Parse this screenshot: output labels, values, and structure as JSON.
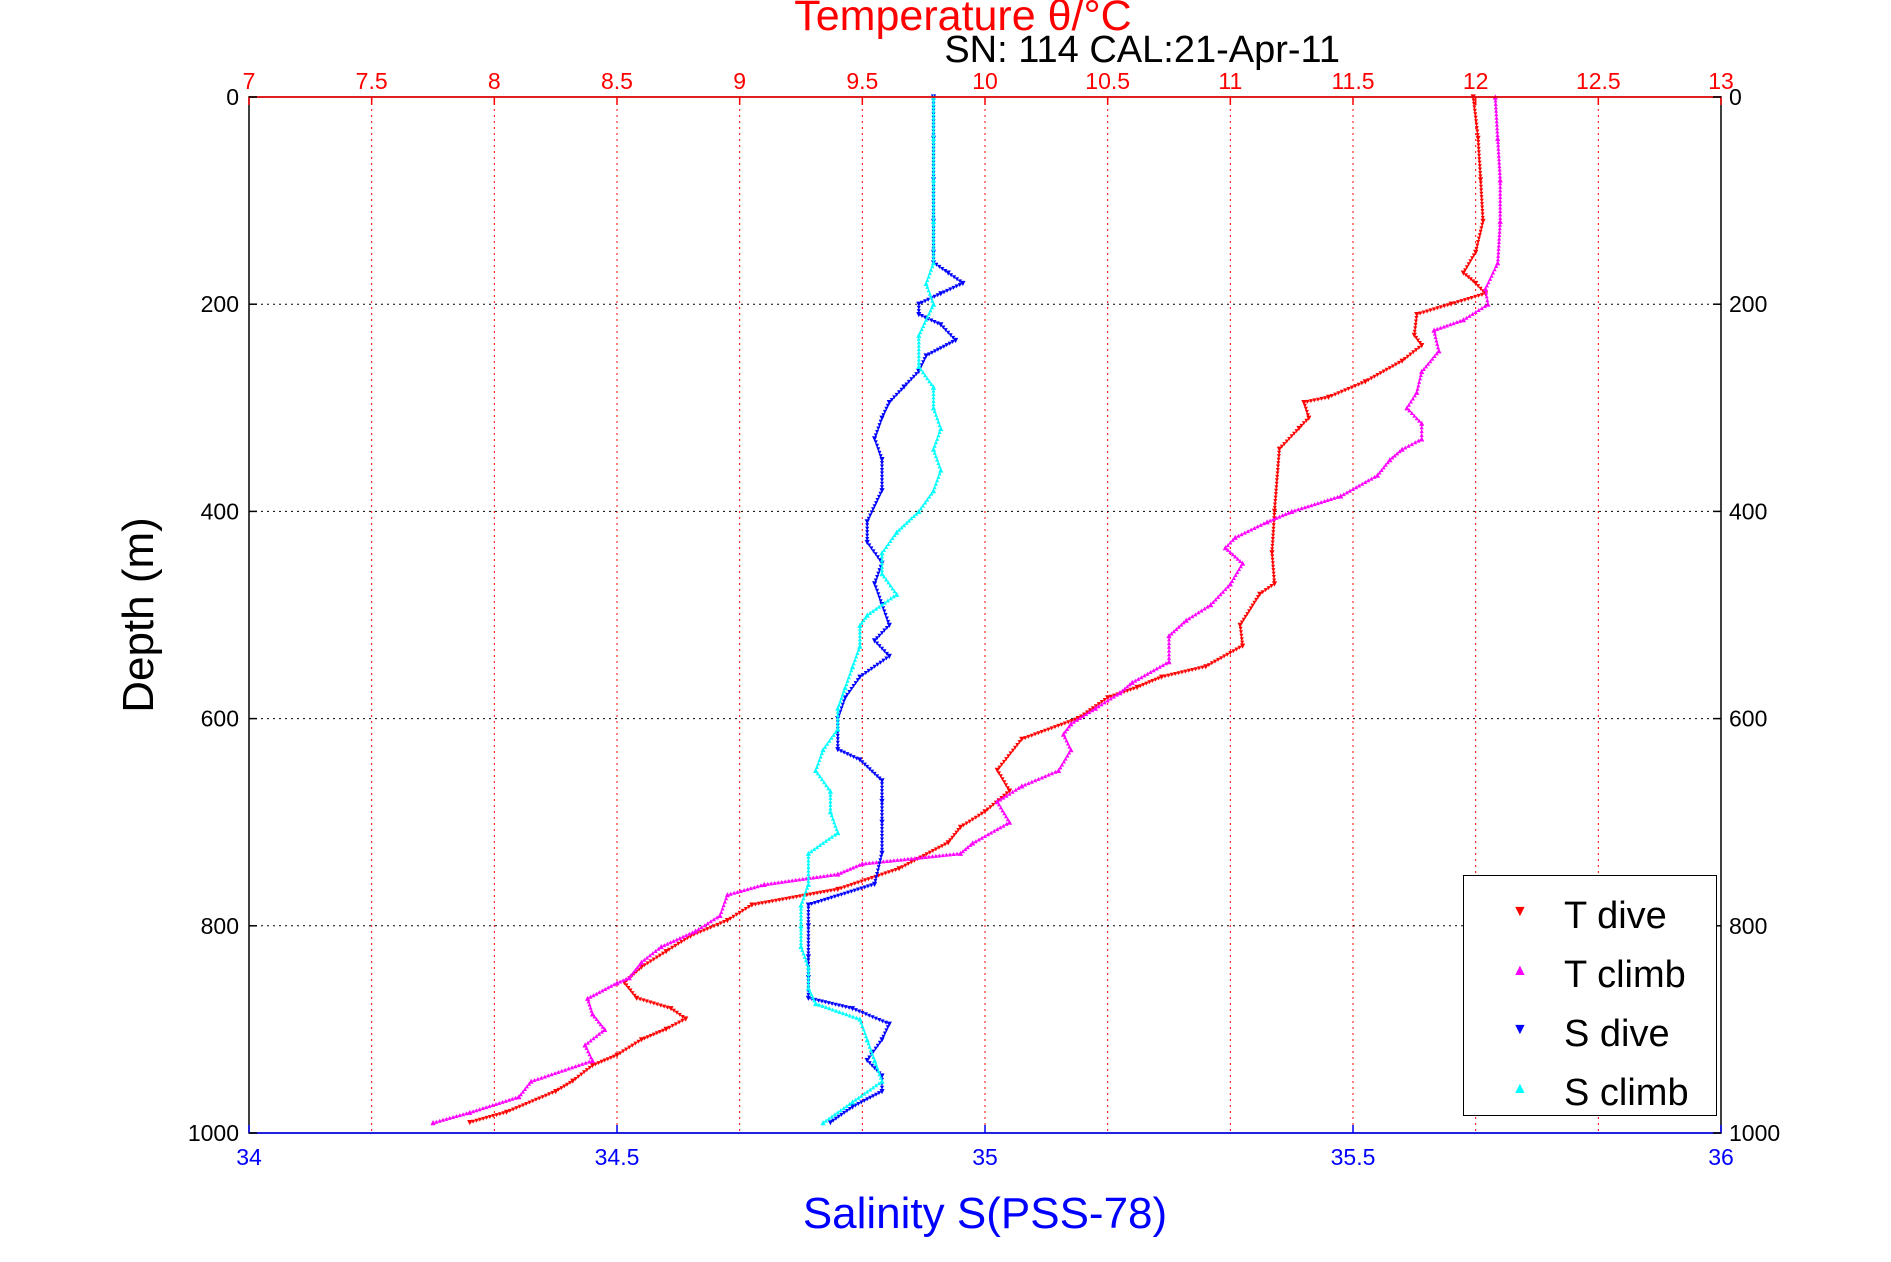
{
  "chart_data": {
    "type": "scatter",
    "title": "Temperature θ/°C",
    "subtitle": "SN: 114  CAL:21-Apr-11",
    "top_axis_label": "Temperature θ/°C",
    "xlabel": "Salinity S(PSS-78)",
    "ylabel": "Depth (m)",
    "temperature_axis": {
      "range": [
        7,
        13
      ],
      "ticks": [
        "7",
        "7.5",
        "8",
        "8.5",
        "9",
        "9.5",
        "10",
        "10.5",
        "11",
        "11.5",
        "12",
        "12.5",
        "13"
      ],
      "color": "#ff0000"
    },
    "salinity_axis": {
      "range": [
        34,
        36
      ],
      "ticks": [
        "34",
        "34.5",
        "35",
        "35.5",
        "36"
      ],
      "color": "#0000ff"
    },
    "depth_axis": {
      "range": [
        0,
        1000
      ],
      "reversed": true,
      "ticks": [
        "0",
        "200",
        "400",
        "600",
        "800",
        "1000"
      ]
    },
    "grid": true,
    "legend_position": "bottom-right",
    "series": [
      {
        "name": "T dive",
        "axis": "temperature",
        "color": "#ff0000",
        "marker": "▼",
        "points": [
          [
            11.99,
            0
          ],
          [
            12.01,
            40
          ],
          [
            12.02,
            80
          ],
          [
            12.03,
            120
          ],
          [
            12.0,
            150
          ],
          [
            11.95,
            170
          ],
          [
            12.0,
            180
          ],
          [
            12.04,
            190
          ],
          [
            11.9,
            200
          ],
          [
            11.76,
            210
          ],
          [
            11.75,
            230
          ],
          [
            11.78,
            240
          ],
          [
            11.7,
            255
          ],
          [
            11.55,
            275
          ],
          [
            11.4,
            290
          ],
          [
            11.3,
            295
          ],
          [
            11.32,
            310
          ],
          [
            11.28,
            320
          ],
          [
            11.2,
            340
          ],
          [
            11.18,
            400
          ],
          [
            11.17,
            440
          ],
          [
            11.18,
            470
          ],
          [
            11.12,
            480
          ],
          [
            11.04,
            510
          ],
          [
            11.05,
            530
          ],
          [
            10.9,
            550
          ],
          [
            10.72,
            560
          ],
          [
            10.62,
            570
          ],
          [
            10.5,
            580
          ],
          [
            10.38,
            600
          ],
          [
            10.15,
            620
          ],
          [
            10.05,
            650
          ],
          [
            10.1,
            670
          ],
          [
            10.0,
            690
          ],
          [
            9.9,
            705
          ],
          [
            9.85,
            720
          ],
          [
            9.65,
            745
          ],
          [
            9.4,
            765
          ],
          [
            9.05,
            780
          ],
          [
            8.95,
            795
          ],
          [
            8.8,
            810
          ],
          [
            8.7,
            825
          ],
          [
            8.6,
            840
          ],
          [
            8.53,
            855
          ],
          [
            8.58,
            870
          ],
          [
            8.72,
            880
          ],
          [
            8.78,
            890
          ],
          [
            8.7,
            900
          ],
          [
            8.6,
            910
          ],
          [
            8.5,
            925
          ],
          [
            8.4,
            935
          ],
          [
            8.32,
            950
          ],
          [
            8.25,
            960
          ],
          [
            8.05,
            980
          ],
          [
            7.9,
            990
          ]
        ]
      },
      {
        "name": "T climb",
        "axis": "temperature",
        "color": "#ff00ff",
        "marker": "▲",
        "points": [
          [
            12.08,
            0
          ],
          [
            12.09,
            40
          ],
          [
            12.1,
            80
          ],
          [
            12.1,
            120
          ],
          [
            12.09,
            160
          ],
          [
            12.04,
            185
          ],
          [
            12.05,
            200
          ],
          [
            11.95,
            215
          ],
          [
            11.83,
            225
          ],
          [
            11.85,
            245
          ],
          [
            11.78,
            265
          ],
          [
            11.76,
            285
          ],
          [
            11.72,
            300
          ],
          [
            11.78,
            315
          ],
          [
            11.78,
            330
          ],
          [
            11.7,
            340
          ],
          [
            11.65,
            350
          ],
          [
            11.6,
            365
          ],
          [
            11.45,
            385
          ],
          [
            11.25,
            400
          ],
          [
            11.15,
            410
          ],
          [
            11.02,
            425
          ],
          [
            10.98,
            435
          ],
          [
            11.05,
            450
          ],
          [
            11.0,
            470
          ],
          [
            10.92,
            490
          ],
          [
            10.82,
            505
          ],
          [
            10.75,
            520
          ],
          [
            10.75,
            545
          ],
          [
            10.6,
            565
          ],
          [
            10.55,
            575
          ],
          [
            10.45,
            590
          ],
          [
            10.35,
            605
          ],
          [
            10.32,
            615
          ],
          [
            10.35,
            630
          ],
          [
            10.3,
            650
          ],
          [
            10.15,
            665
          ],
          [
            10.05,
            680
          ],
          [
            10.1,
            700
          ],
          [
            9.95,
            720
          ],
          [
            9.9,
            730
          ],
          [
            9.5,
            740
          ],
          [
            9.4,
            750
          ],
          [
            9.1,
            760
          ],
          [
            8.95,
            770
          ],
          [
            8.92,
            790
          ],
          [
            8.82,
            805
          ],
          [
            8.68,
            820
          ],
          [
            8.6,
            835
          ],
          [
            8.55,
            850
          ],
          [
            8.5,
            855
          ],
          [
            8.38,
            870
          ],
          [
            8.4,
            885
          ],
          [
            8.45,
            900
          ],
          [
            8.37,
            915
          ],
          [
            8.4,
            930
          ],
          [
            8.15,
            950
          ],
          [
            8.1,
            965
          ],
          [
            7.9,
            980
          ],
          [
            7.75,
            990
          ]
        ]
      },
      {
        "name": "S dive",
        "axis": "salinity",
        "color": "#0000ff",
        "marker": "▼",
        "points": [
          [
            34.93,
            0
          ],
          [
            34.93,
            40
          ],
          [
            34.93,
            80
          ],
          [
            34.93,
            120
          ],
          [
            34.93,
            150
          ],
          [
            34.93,
            160
          ],
          [
            34.95,
            170
          ],
          [
            34.97,
            180
          ],
          [
            34.94,
            190
          ],
          [
            34.91,
            200
          ],
          [
            34.91,
            210
          ],
          [
            34.94,
            220
          ],
          [
            34.96,
            235
          ],
          [
            34.92,
            250
          ],
          [
            34.91,
            265
          ],
          [
            34.89,
            280
          ],
          [
            34.87,
            295
          ],
          [
            34.86,
            310
          ],
          [
            34.85,
            330
          ],
          [
            34.86,
            350
          ],
          [
            34.86,
            380
          ],
          [
            34.84,
            410
          ],
          [
            34.84,
            430
          ],
          [
            34.86,
            450
          ],
          [
            34.85,
            470
          ],
          [
            34.86,
            490
          ],
          [
            34.87,
            510
          ],
          [
            34.85,
            525
          ],
          [
            34.87,
            540
          ],
          [
            34.83,
            560
          ],
          [
            34.81,
            580
          ],
          [
            34.8,
            600
          ],
          [
            34.8,
            630
          ],
          [
            34.83,
            640
          ],
          [
            34.86,
            660
          ],
          [
            34.86,
            680
          ],
          [
            34.86,
            700
          ],
          [
            34.86,
            730
          ],
          [
            34.85,
            760
          ],
          [
            34.76,
            780
          ],
          [
            34.76,
            800
          ],
          [
            34.76,
            830
          ],
          [
            34.76,
            850
          ],
          [
            34.76,
            870
          ],
          [
            34.82,
            880
          ],
          [
            34.87,
            895
          ],
          [
            34.86,
            910
          ],
          [
            34.84,
            930
          ],
          [
            34.86,
            945
          ],
          [
            34.86,
            960
          ],
          [
            34.82,
            975
          ],
          [
            34.79,
            990
          ]
        ]
      },
      {
        "name": "S climb",
        "axis": "salinity",
        "color": "#00ffff",
        "marker": "▲",
        "points": [
          [
            34.93,
            0
          ],
          [
            34.93,
            40
          ],
          [
            34.93,
            80
          ],
          [
            34.93,
            120
          ],
          [
            34.93,
            160
          ],
          [
            34.92,
            180
          ],
          [
            34.93,
            200
          ],
          [
            34.91,
            230
          ],
          [
            34.91,
            260
          ],
          [
            34.93,
            280
          ],
          [
            34.93,
            300
          ],
          [
            34.94,
            320
          ],
          [
            34.93,
            340
          ],
          [
            34.94,
            360
          ],
          [
            34.93,
            380
          ],
          [
            34.91,
            400
          ],
          [
            34.88,
            420
          ],
          [
            34.86,
            440
          ],
          [
            34.86,
            460
          ],
          [
            34.88,
            480
          ],
          [
            34.84,
            500
          ],
          [
            34.83,
            510
          ],
          [
            34.83,
            530
          ],
          [
            34.82,
            550
          ],
          [
            34.81,
            570
          ],
          [
            34.8,
            590
          ],
          [
            34.8,
            610
          ],
          [
            34.78,
            630
          ],
          [
            34.77,
            650
          ],
          [
            34.79,
            670
          ],
          [
            34.79,
            690
          ],
          [
            34.8,
            710
          ],
          [
            34.76,
            730
          ],
          [
            34.76,
            760
          ],
          [
            34.75,
            780
          ],
          [
            34.75,
            800
          ],
          [
            34.75,
            820
          ],
          [
            34.76,
            840
          ],
          [
            34.76,
            860
          ],
          [
            34.77,
            875
          ],
          [
            34.83,
            890
          ],
          [
            34.84,
            910
          ],
          [
            34.85,
            930
          ],
          [
            34.86,
            950
          ],
          [
            34.82,
            970
          ],
          [
            34.78,
            990
          ]
        ]
      }
    ]
  }
}
